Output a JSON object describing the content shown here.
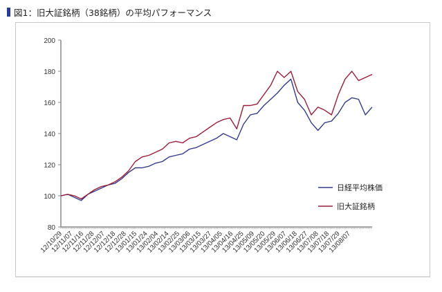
{
  "title": "図1：旧大証銘柄（38銘柄）の平均パフォーマンス",
  "chart_data": {
    "type": "line",
    "title": "図1：旧大証銘柄（38銘柄）の平均パフォーマンス",
    "xlabel": "",
    "ylabel": "",
    "ylim": [
      80,
      200
    ],
    "yticks": [
      "200",
      "180",
      "160",
      "140",
      "120",
      "100",
      "80"
    ],
    "ytick_values": [
      200,
      180,
      160,
      140,
      120,
      100,
      80
    ],
    "xticks": [
      "12/10/29",
      "12/11/07",
      "12/11/16",
      "12/11/28",
      "12/12/07",
      "12/12/18",
      "12/12/28",
      "13/01/15",
      "13/01/24",
      "13/02/04",
      "13/02/14",
      "13/02/25",
      "13/03/06",
      "13/03/15",
      "13/03/27",
      "13/04/05",
      "13/04/16",
      "13/04/25",
      "13/05/09",
      "13/05/20",
      "13/05/29",
      "13/06/07",
      "13/06/18",
      "13/06/27",
      "13/07/08",
      "13/07/18",
      "13/07/29",
      "13/08/07"
    ],
    "grid": false,
    "legend_position": "right",
    "series": [
      {
        "name": "日経平均株価",
        "color": "#333a8c",
        "values": [
          100,
          101,
          99,
          97,
          101,
          103,
          105,
          107,
          108,
          111,
          115,
          118,
          118,
          119,
          121,
          122,
          125,
          126,
          127,
          130,
          131,
          133,
          135,
          137,
          140,
          138,
          136,
          146,
          152,
          153,
          158,
          162,
          166,
          171,
          175,
          160,
          155,
          147,
          142,
          147,
          148,
          153,
          160,
          163,
          162,
          152,
          157
        ]
      },
      {
        "name": "旧大証銘柄",
        "color": "#9b1b3a",
        "values": [
          100,
          101,
          100,
          98,
          101,
          104,
          106,
          107,
          109,
          112,
          116,
          122,
          125,
          126,
          128,
          130,
          134,
          135,
          134,
          137,
          138,
          141,
          144,
          147,
          149,
          150,
          143,
          158,
          158,
          159,
          165,
          171,
          180,
          176,
          180,
          167,
          162,
          152,
          157,
          155,
          152,
          165,
          175,
          180,
          174,
          176,
          178
        ]
      }
    ]
  }
}
